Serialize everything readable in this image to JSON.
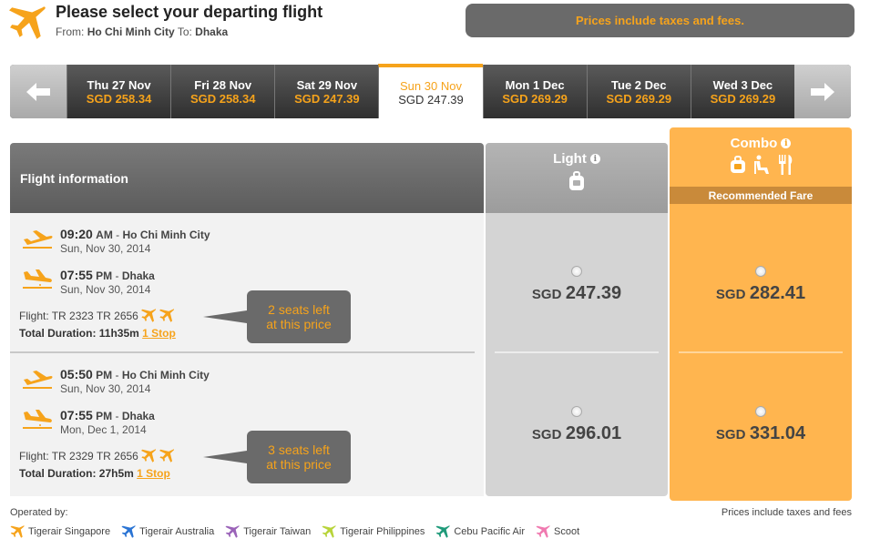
{
  "header": {
    "title": "Please select your departing flight",
    "from_label": "From:",
    "from": "Ho Chi Minh City",
    "to_label": "To:",
    "to": "Dhaka",
    "tax_banner": "Prices include taxes and fees."
  },
  "dates": [
    {
      "day": "Thu 27 Nov",
      "price": "SGD 258.34",
      "selected": false
    },
    {
      "day": "Fri 28 Nov",
      "price": "SGD 258.34",
      "selected": false
    },
    {
      "day": "Sat 29 Nov",
      "price": "SGD 247.39",
      "selected": false
    },
    {
      "day": "Sun 30 Nov",
      "price": "SGD 247.39",
      "selected": true
    },
    {
      "day": "Mon 1 Dec",
      "price": "SGD 269.29",
      "selected": false
    },
    {
      "day": "Tue 2 Dec",
      "price": "SGD 269.29",
      "selected": false
    },
    {
      "day": "Wed 3 Dec",
      "price": "SGD 269.29",
      "selected": false
    }
  ],
  "table": {
    "info_header": "Flight information",
    "light_title": "Light",
    "combo_title": "Combo",
    "recommended": "Recommended Fare"
  },
  "flights": [
    {
      "dep_time": "09:20",
      "dep_ampm": "AM",
      "dep_city": "Ho Chi Minh City",
      "dep_date": "Sun, Nov 30, 2014",
      "arr_time": "07:55",
      "arr_ampm": "PM",
      "arr_city": "Dhaka",
      "arr_date": "Sun, Nov 30, 2014",
      "flight_label": "Flight:",
      "flight_no": "TR 2323 TR 2656",
      "duration_label": "Total Duration:",
      "duration": "11h35m",
      "stops": "1 Stop",
      "seats_line1": "2 seats left",
      "seats_line2": "at this price",
      "light_cur": "SGD",
      "light_amt": "247.39",
      "combo_cur": "SGD",
      "combo_amt": "282.41"
    },
    {
      "dep_time": "05:50",
      "dep_ampm": "PM",
      "dep_city": "Ho Chi Minh City",
      "dep_date": "Sun, Nov 30, 2014",
      "arr_time": "07:55",
      "arr_ampm": "PM",
      "arr_city": "Dhaka",
      "arr_date": "Mon, Dec 1, 2014",
      "flight_label": "Flight:",
      "flight_no": "TR 2329 TR 2656",
      "duration_label": "Total Duration:",
      "duration": "27h5m",
      "stops": "1 Stop",
      "seats_line1": "3 seats left",
      "seats_line2": "at this price",
      "light_cur": "SGD",
      "light_amt": "296.01",
      "combo_cur": "SGD",
      "combo_amt": "331.04"
    }
  ],
  "footer": {
    "operated_by": "Operated by:",
    "note": "Prices include taxes and fees",
    "airlines": [
      {
        "name": "Tigerair Singapore",
        "color": "#f6a31b"
      },
      {
        "name": "Tigerair Australia",
        "color": "#2a74d4"
      },
      {
        "name": "Tigerair Taiwan",
        "color": "#9a63b8"
      },
      {
        "name": "Tigerair Philippines",
        "color": "#b8d43a"
      },
      {
        "name": "Cebu Pacific Air",
        "color": "#1f9a7a"
      },
      {
        "name": "Scoot",
        "color": "#f07ab0"
      }
    ]
  },
  "colors": {
    "accent": "#f6a31b"
  }
}
